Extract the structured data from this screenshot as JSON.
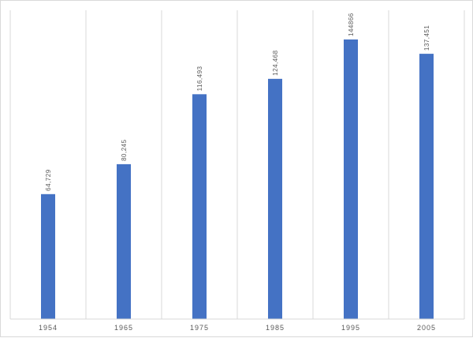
{
  "chart_data": {
    "type": "bar",
    "title": "",
    "xlabel": "",
    "ylabel": "",
    "categories": [
      "1954",
      "1965",
      "1975",
      "1985",
      "1995",
      "2005"
    ],
    "values": [
      64729,
      80245,
      116493,
      124468,
      144866,
      137451
    ],
    "data_labels": [
      "64,729",
      "80,245",
      "116,493",
      "124,468",
      "144866",
      "137,451"
    ],
    "ylim": [
      0,
      160000
    ],
    "grid": "vertical category dividers",
    "legend": "none",
    "bar_color": "#4472c4",
    "gridline_color": "#d9d9d9",
    "label_color": "#595959"
  }
}
